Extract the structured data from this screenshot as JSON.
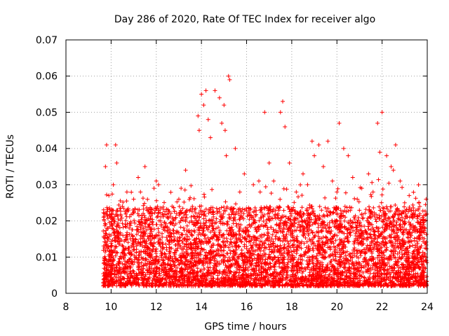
{
  "chart_data": {
    "type": "scatter",
    "title": "Day 286 of 2020, Rate Of TEC Index for receiver algo",
    "xlabel": "GPS time / hours",
    "ylabel": "ROTI / TECUs",
    "xlim": [
      8,
      24
    ],
    "ylim": [
      0,
      0.07
    ],
    "xticks": [
      "8",
      "10",
      "12",
      "14",
      "16",
      "18",
      "20",
      "22",
      "24"
    ],
    "yticks": [
      "0",
      "0.01",
      "0.02",
      "0.03",
      "0.04",
      "0.05",
      "0.06",
      "0.07"
    ],
    "grid": true,
    "marker_color": "#ff0000",
    "series": [
      {
        "x": [
          9.7,
          9.75,
          9.8,
          9.9,
          10.1,
          10.2,
          10.25,
          10.5,
          10.7,
          10.8,
          11.0,
          11.2,
          11.3,
          11.5,
          11.7,
          11.9,
          12.0,
          12.1,
          12.5,
          12.9,
          13.0,
          13.1,
          13.3,
          13.6,
          13.85,
          13.9,
          14.0,
          14.1,
          14.2,
          14.3,
          14.4,
          14.6,
          14.8,
          14.9,
          15.0,
          15.05,
          15.1,
          15.2,
          15.25,
          15.5,
          15.7,
          15.9,
          16.1,
          16.3,
          16.6,
          16.8,
          17.0,
          17.2,
          17.5,
          17.6,
          17.7,
          17.9,
          18.2,
          18.5,
          18.7,
          18.9,
          19.0,
          19.2,
          19.4,
          19.6,
          19.8,
          20.0,
          20.1,
          20.3,
          20.5,
          20.7,
          20.9,
          21.1,
          21.4,
          21.6,
          21.8,
          21.9,
          22.0,
          22.2,
          22.4,
          22.5,
          22.6,
          22.8,
          23.0,
          23.2,
          23.4,
          23.6,
          23.8,
          23.95
        ],
        "y": [
          0.022,
          0.035,
          0.041,
          0.027,
          0.03,
          0.041,
          0.036,
          0.024,
          0.028,
          0.018,
          0.026,
          0.032,
          0.028,
          0.035,
          0.022,
          0.029,
          0.031,
          0.03,
          0.017,
          0.022,
          0.026,
          0.029,
          0.034,
          0.024,
          0.049,
          0.045,
          0.055,
          0.052,
          0.056,
          0.048,
          0.043,
          0.056,
          0.054,
          0.047,
          0.052,
          0.045,
          0.038,
          0.06,
          0.059,
          0.04,
          0.028,
          0.033,
          0.022,
          0.03,
          0.028,
          0.05,
          0.036,
          0.031,
          0.05,
          0.053,
          0.046,
          0.036,
          0.028,
          0.033,
          0.03,
          0.042,
          0.038,
          0.041,
          0.035,
          0.042,
          0.031,
          0.028,
          0.047,
          0.04,
          0.038,
          0.032,
          0.026,
          0.029,
          0.033,
          0.028,
          0.047,
          0.039,
          0.05,
          0.038,
          0.035,
          0.034,
          0.041,
          0.031,
          0.025,
          0.027,
          0.022,
          0.023,
          0.021,
          0.026
        ]
      }
    ]
  }
}
